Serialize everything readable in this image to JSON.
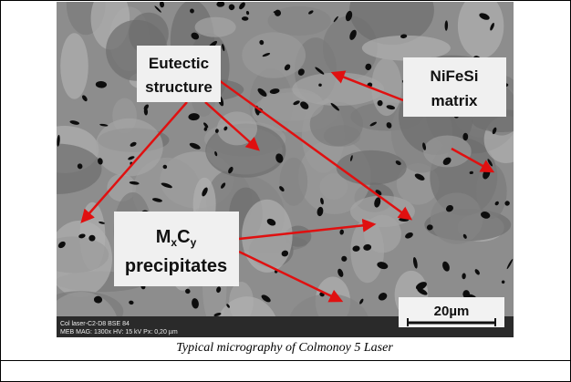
{
  "figure": {
    "labels": {
      "eutectic": {
        "lines": [
          "Eutectic",
          "structure"
        ]
      },
      "matrix": {
        "lines": [
          "NiFeSi",
          "matrix"
        ]
      },
      "precipitates": {
        "formula": [
          "M",
          "x",
          "C",
          "y"
        ],
        "line2": "precipitates"
      }
    },
    "scale_bar": "20µm",
    "info_bar": {
      "line1": "Col laser-C2-D8 BSE 84",
      "line2": "MEB   MAG: 1300x   HV: 15 kV   Px: 0,20 µm"
    },
    "caption": "Typical micrography of Colmonoy 5 Laser"
  }
}
